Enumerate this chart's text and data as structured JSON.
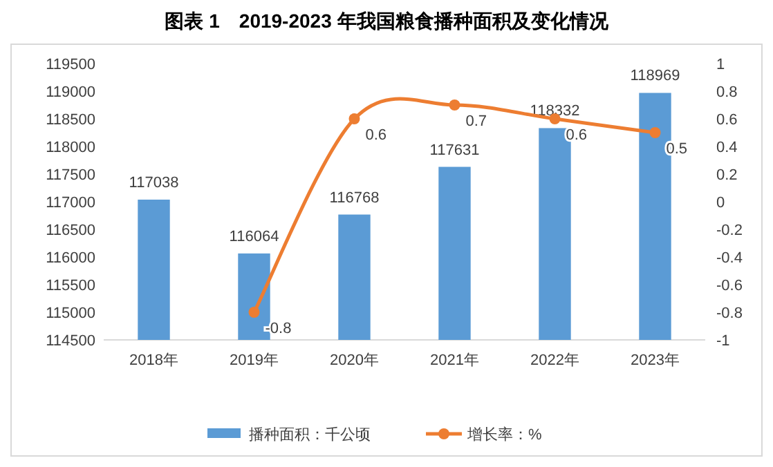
{
  "chart_data": {
    "type": "bar",
    "title": "图表 1　2019-2023 年我国粮食播种面积及变化情况",
    "categories": [
      "2018年",
      "2019年",
      "2020年",
      "2021年",
      "2022年",
      "2023年"
    ],
    "series": [
      {
        "name": "播种面积：千公顷",
        "color": "#5b9bd5",
        "values": [
          117038,
          116064,
          116768,
          117631,
          118332,
          118969
        ]
      },
      {
        "name": "增长率：%",
        "type": "line",
        "axis": "y2",
        "color": "#ed7d31",
        "marker": "circle",
        "values": [
          null,
          -0.8,
          0.6,
          0.7,
          0.6,
          0.5
        ]
      }
    ],
    "ylim": [
      114500,
      119500
    ],
    "yticks": [
      114500,
      115000,
      115500,
      116000,
      116500,
      117000,
      117500,
      118000,
      118500,
      119000,
      119500
    ],
    "y2lim": [
      -1,
      1
    ],
    "y2ticks": [
      -1,
      -0.8,
      -0.6,
      -0.4,
      -0.2,
      0,
      0.2,
      0.4,
      0.6,
      0.8,
      1
    ],
    "data_labels": true,
    "legend": "bottom"
  }
}
